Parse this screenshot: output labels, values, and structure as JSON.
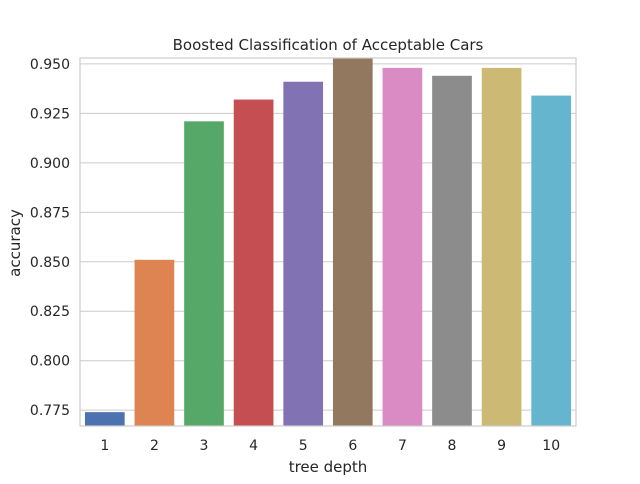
{
  "chart_data": {
    "type": "bar",
    "title": "Boosted Classification of Acceptable Cars",
    "xlabel": "tree depth",
    "ylabel": "accuracy",
    "categories": [
      "1",
      "2",
      "3",
      "4",
      "5",
      "6",
      "7",
      "8",
      "9",
      "10"
    ],
    "values": [
      0.774,
      0.851,
      0.921,
      0.932,
      0.941,
      0.953,
      0.948,
      0.944,
      0.948,
      0.934
    ],
    "colors": [
      "#4c72b0",
      "#dd8452",
      "#55a868",
      "#c44e52",
      "#8172b3",
      "#937860",
      "#da8bc3",
      "#8c8c8c",
      "#ccb974",
      "#64b5cd"
    ],
    "ylim": [
      0.767,
      0.953
    ],
    "yticks": [
      0.775,
      0.8,
      0.825,
      0.85,
      0.875,
      0.9,
      0.925,
      0.95
    ],
    "ytick_labels": [
      "0.775",
      "0.800",
      "0.825",
      "0.850",
      "0.875",
      "0.900",
      "0.925",
      "0.950"
    ],
    "grid": "horizontal",
    "legend": "none"
  }
}
